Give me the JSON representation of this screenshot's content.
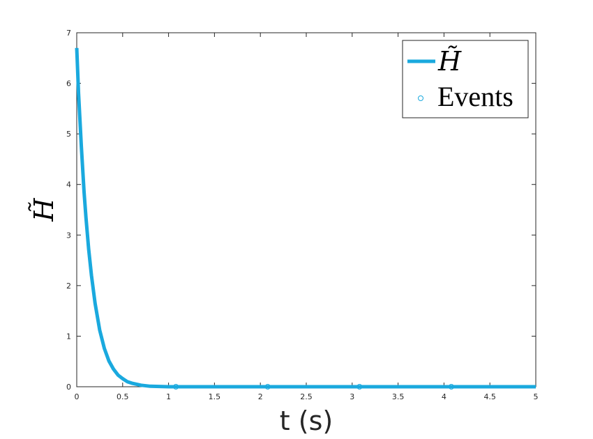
{
  "chart_data": {
    "type": "line",
    "xlabel": "t (s)",
    "ylabel": "H̃",
    "xlim": [
      0,
      5
    ],
    "ylim": [
      0,
      7
    ],
    "x_ticks": [
      "0",
      "0.5",
      "1",
      "1.5",
      "2",
      "2.5",
      "3",
      "3.5",
      "4",
      "4.5",
      "5"
    ],
    "y_ticks": [
      "0",
      "1",
      "2",
      "3",
      "4",
      "5",
      "6",
      "7"
    ],
    "grid": false,
    "legend_position": "top-right",
    "series": [
      {
        "name": "H̃",
        "kind": "line",
        "color": "#1aa9de",
        "x": [
          0,
          0.02,
          0.05,
          0.08,
          0.1,
          0.13,
          0.16,
          0.2,
          0.25,
          0.3,
          0.35,
          0.4,
          0.45,
          0.5,
          0.55,
          0.6,
          0.7,
          0.8,
          1.0,
          1.5,
          2,
          2.5,
          3,
          3.5,
          4,
          4.5,
          5
        ],
        "y": [
          6.7,
          5.8,
          4.75,
          3.85,
          3.35,
          2.72,
          2.2,
          1.65,
          1.12,
          0.76,
          0.51,
          0.35,
          0.23,
          0.16,
          0.1,
          0.07,
          0.03,
          0.01,
          0.0,
          0.0,
          0.0,
          0.0,
          0.0,
          0.0,
          0.0,
          0.0,
          0.0
        ]
      },
      {
        "name": "Events",
        "kind": "markers",
        "marker": "circle-open",
        "color": "#1aa9de",
        "x": [
          1.08,
          2.08,
          3.08,
          4.08
        ],
        "y": [
          0,
          0,
          0,
          0
        ]
      }
    ]
  }
}
